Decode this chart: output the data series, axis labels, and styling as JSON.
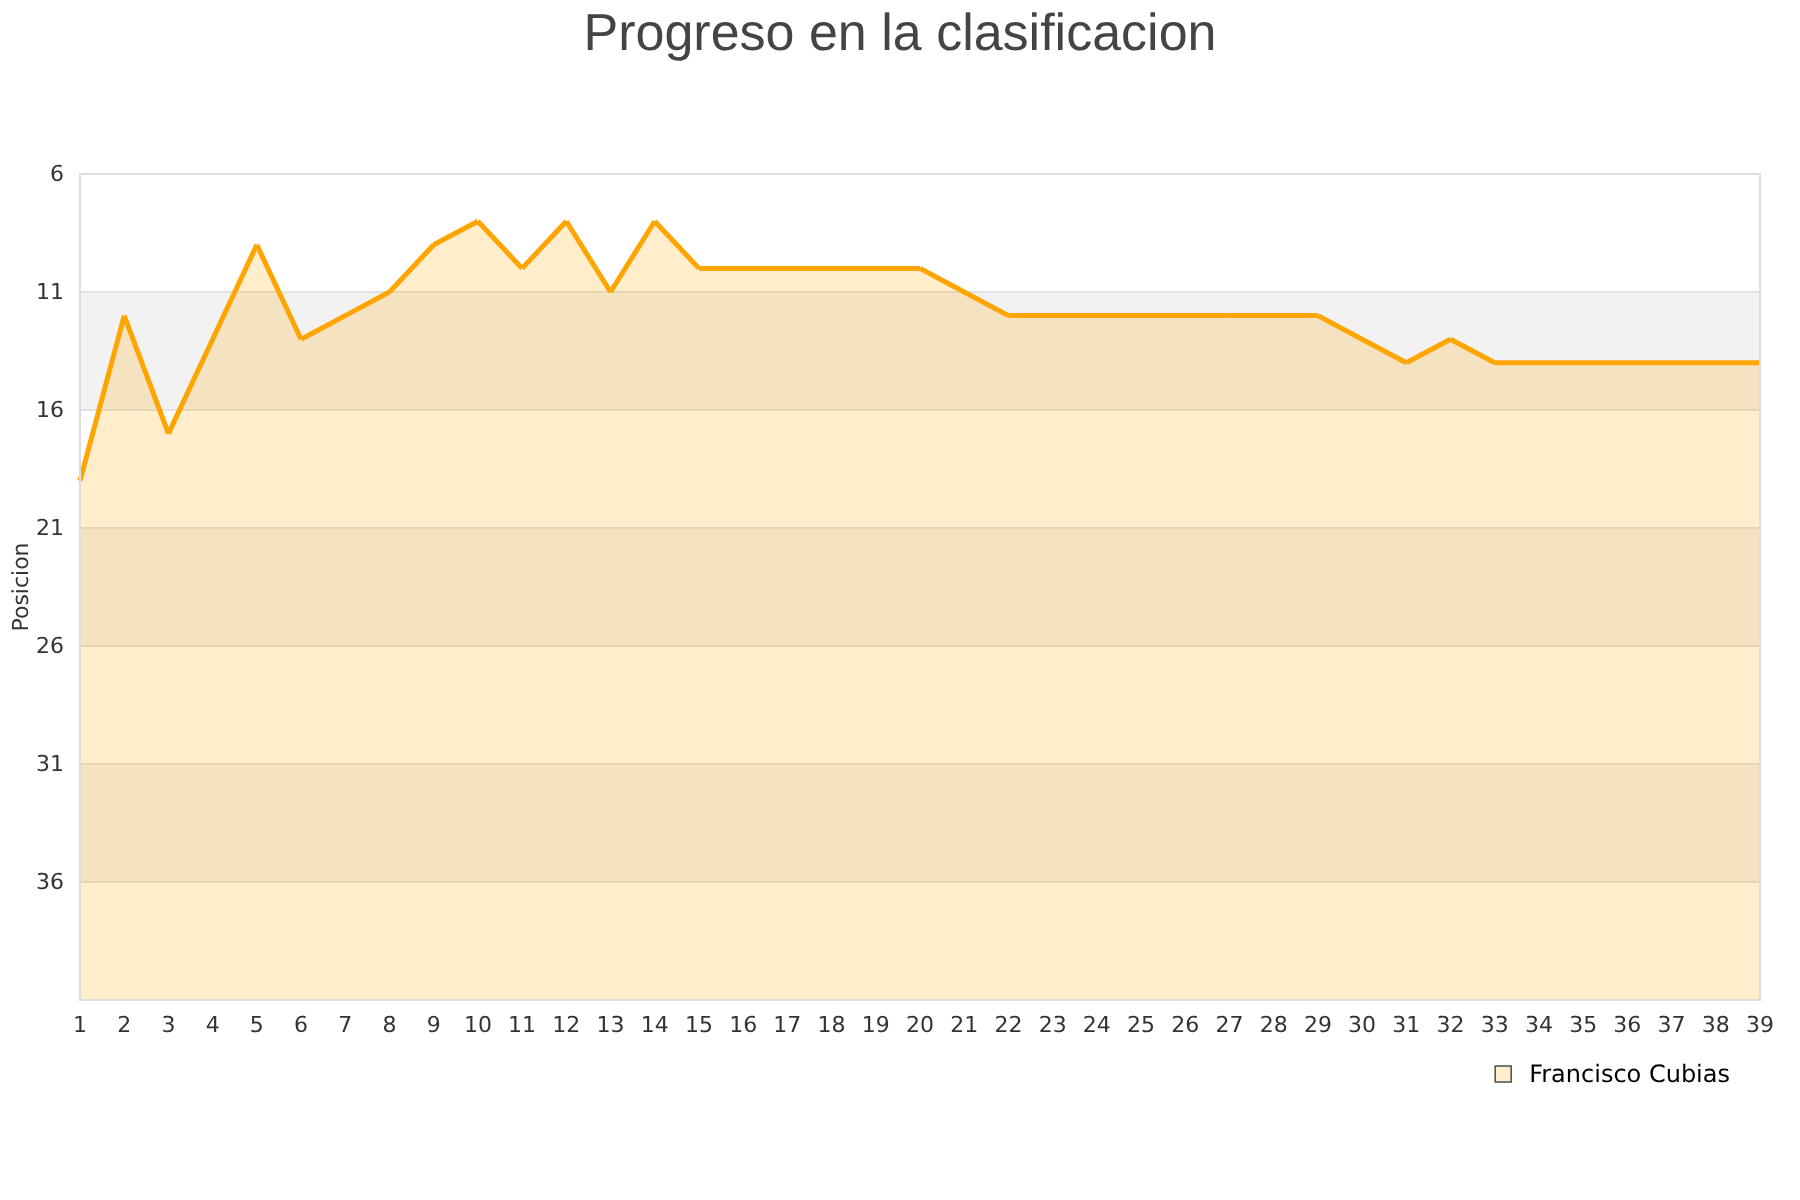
{
  "chart_data": {
    "type": "area",
    "title": "Progreso en la clasificacion",
    "ylabel": "Posicion",
    "x": [
      1,
      2,
      3,
      4,
      5,
      6,
      7,
      8,
      9,
      10,
      11,
      12,
      13,
      14,
      15,
      16,
      17,
      18,
      19,
      20,
      21,
      22,
      23,
      24,
      25,
      26,
      27,
      28,
      29,
      30,
      31,
      32,
      33,
      34,
      35,
      36,
      37,
      38,
      39
    ],
    "series": [
      {
        "name": "Francisco Cubias",
        "color": "#ffa500",
        "values": [
          19,
          12,
          17,
          13,
          9,
          13,
          12,
          11,
          9,
          8,
          10,
          8,
          11,
          8,
          10,
          10,
          10,
          10,
          10,
          10,
          11,
          12,
          12,
          12,
          12,
          12,
          12,
          12,
          12,
          13,
          14,
          13,
          14,
          14,
          14,
          14,
          14,
          14,
          14
        ]
      }
    ],
    "xlim": [
      1,
      39
    ],
    "xticks": [
      1,
      2,
      3,
      4,
      5,
      6,
      7,
      8,
      9,
      10,
      11,
      12,
      13,
      14,
      15,
      16,
      17,
      18,
      19,
      20,
      21,
      22,
      23,
      24,
      25,
      26,
      27,
      28,
      29,
      30,
      31,
      32,
      33,
      34,
      35,
      36,
      37,
      38,
      39
    ],
    "ylim": [
      41,
      6
    ],
    "yticks": [
      {
        "value": 41,
        "label": null
      },
      36,
      31,
      26,
      21,
      16,
      11,
      6
    ],
    "bands": [
      {
        "axis": "y",
        "from": 11,
        "to": 16,
        "color": "#f2f2f2"
      },
      {
        "axis": "y",
        "from": 21,
        "to": 26,
        "color": "#f2f2f2"
      },
      {
        "axis": "y",
        "from": 31,
        "to": 36,
        "color": "#f2f2f2"
      }
    ],
    "grid": "y",
    "legend": "bottom right"
  }
}
